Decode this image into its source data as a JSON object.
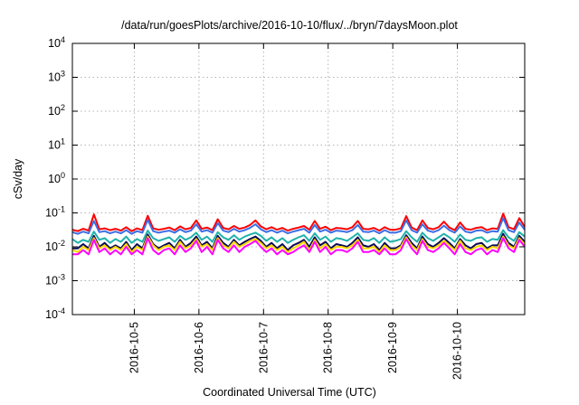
{
  "chart_data": {
    "type": "line",
    "title": "/data/run/goesPlots/archive/2016-10-10/flux/../bryn/7daysMoon.plot",
    "xlabel": "Coordinated Universal Time (UTC)",
    "ylabel": "cSv/day",
    "yscale": "log",
    "ylim": [
      0.0001,
      10000
    ],
    "yticks": [
      {
        "value": 0.0001,
        "base": "10",
        "exp": "-4"
      },
      {
        "value": 0.001,
        "base": "10",
        "exp": "-3"
      },
      {
        "value": 0.01,
        "base": "10",
        "exp": "-2"
      },
      {
        "value": 0.1,
        "base": "10",
        "exp": "-1"
      },
      {
        "value": 1,
        "base": "10",
        "exp": "0"
      },
      {
        "value": 10,
        "base": "10",
        "exp": "1"
      },
      {
        "value": 100,
        "base": "10",
        "exp": "2"
      },
      {
        "value": 1000,
        "base": "10",
        "exp": "3"
      },
      {
        "value": 10000,
        "base": "10",
        "exp": "4"
      }
    ],
    "xlim": [
      "2016-10-04T01:00",
      "2016-10-11T01:00"
    ],
    "xticks": [
      {
        "value": "2016-10-05T00:00",
        "label": "2016-10-5"
      },
      {
        "value": "2016-10-06T00:00",
        "label": "2016-10-6"
      },
      {
        "value": "2016-10-07T00:00",
        "label": "2016-10-7"
      },
      {
        "value": "2016-10-08T00:00",
        "label": "2016-10-8"
      },
      {
        "value": "2016-10-09T00:00",
        "label": "2016-10-9"
      },
      {
        "value": "2016-10-10T00:00",
        "label": "2016-10-10"
      }
    ],
    "grid": true,
    "x": [
      "2016-10-04T01:00",
      "2016-10-04T03:00",
      "2016-10-04T05:00",
      "2016-10-04T07:00",
      "2016-10-04T09:00",
      "2016-10-04T11:00",
      "2016-10-04T13:00",
      "2016-10-04T15:00",
      "2016-10-04T17:00",
      "2016-10-04T19:00",
      "2016-10-04T21:00",
      "2016-10-04T23:00",
      "2016-10-05T01:00",
      "2016-10-05T03:00",
      "2016-10-05T05:00",
      "2016-10-05T07:00",
      "2016-10-05T09:00",
      "2016-10-05T11:00",
      "2016-10-05T13:00",
      "2016-10-05T15:00",
      "2016-10-05T17:00",
      "2016-10-05T19:00",
      "2016-10-05T21:00",
      "2016-10-05T23:00",
      "2016-10-06T01:00",
      "2016-10-06T03:00",
      "2016-10-06T05:00",
      "2016-10-06T07:00",
      "2016-10-06T09:00",
      "2016-10-06T11:00",
      "2016-10-06T13:00",
      "2016-10-06T15:00",
      "2016-10-06T17:00",
      "2016-10-06T19:00",
      "2016-10-06T21:00",
      "2016-10-06T23:00",
      "2016-10-07T01:00",
      "2016-10-07T03:00",
      "2016-10-07T05:00",
      "2016-10-07T07:00",
      "2016-10-07T09:00",
      "2016-10-07T11:00",
      "2016-10-07T13:00",
      "2016-10-07T15:00",
      "2016-10-07T17:00",
      "2016-10-07T19:00",
      "2016-10-07T21:00",
      "2016-10-07T23:00",
      "2016-10-08T01:00",
      "2016-10-08T03:00",
      "2016-10-08T05:00",
      "2016-10-08T07:00",
      "2016-10-08T09:00",
      "2016-10-08T11:00",
      "2016-10-08T13:00",
      "2016-10-08T15:00",
      "2016-10-08T17:00",
      "2016-10-08T19:00",
      "2016-10-08T21:00",
      "2016-10-08T23:00",
      "2016-10-09T01:00",
      "2016-10-09T03:00",
      "2016-10-09T05:00",
      "2016-10-09T07:00",
      "2016-10-09T09:00",
      "2016-10-09T11:00",
      "2016-10-09T13:00",
      "2016-10-09T15:00",
      "2016-10-09T17:00",
      "2016-10-09T19:00",
      "2016-10-09T21:00",
      "2016-10-09T23:00",
      "2016-10-10T01:00",
      "2016-10-10T03:00",
      "2016-10-10T05:00",
      "2016-10-10T07:00",
      "2016-10-10T09:00",
      "2016-10-10T11:00",
      "2016-10-10T13:00",
      "2016-10-10T15:00",
      "2016-10-10T17:00",
      "2016-10-10T19:00",
      "2016-10-10T21:00",
      "2016-10-10T23:00",
      "2016-10-11T01:00"
    ],
    "series": [
      {
        "color": "#ff0000",
        "values": [
          0.032,
          0.029,
          0.034,
          0.03,
          0.09,
          0.033,
          0.035,
          0.031,
          0.034,
          0.03,
          0.038,
          0.029,
          0.035,
          0.031,
          0.082,
          0.035,
          0.032,
          0.034,
          0.037,
          0.031,
          0.04,
          0.033,
          0.036,
          0.06,
          0.034,
          0.037,
          0.031,
          0.065,
          0.036,
          0.033,
          0.041,
          0.034,
          0.037,
          0.044,
          0.06,
          0.04,
          0.033,
          0.038,
          0.032,
          0.036,
          0.03,
          0.034,
          0.037,
          0.041,
          0.032,
          0.058,
          0.034,
          0.039,
          0.031,
          0.036,
          0.035,
          0.033,
          0.038,
          0.058,
          0.034,
          0.033,
          0.036,
          0.03,
          0.038,
          0.032,
          0.032,
          0.035,
          0.08,
          0.037,
          0.031,
          0.06,
          0.036,
          0.033,
          0.038,
          0.055,
          0.037,
          0.031,
          0.052,
          0.034,
          0.032,
          0.036,
          0.038,
          0.031,
          0.035,
          0.034,
          0.095,
          0.038,
          0.033,
          0.07,
          0.039
        ]
      },
      {
        "color": "#3c6ee6",
        "values": [
          0.027,
          0.024,
          0.028,
          0.025,
          0.058,
          0.027,
          0.029,
          0.025,
          0.028,
          0.025,
          0.031,
          0.024,
          0.029,
          0.026,
          0.062,
          0.029,
          0.026,
          0.028,
          0.03,
          0.026,
          0.033,
          0.027,
          0.03,
          0.046,
          0.028,
          0.031,
          0.026,
          0.05,
          0.03,
          0.027,
          0.034,
          0.028,
          0.031,
          0.036,
          0.046,
          0.033,
          0.027,
          0.031,
          0.026,
          0.03,
          0.025,
          0.028,
          0.031,
          0.034,
          0.026,
          0.044,
          0.028,
          0.032,
          0.026,
          0.03,
          0.029,
          0.027,
          0.031,
          0.044,
          0.028,
          0.027,
          0.03,
          0.025,
          0.031,
          0.026,
          0.026,
          0.029,
          0.06,
          0.031,
          0.026,
          0.046,
          0.03,
          0.027,
          0.031,
          0.042,
          0.031,
          0.026,
          0.04,
          0.028,
          0.026,
          0.03,
          0.031,
          0.026,
          0.029,
          0.028,
          0.07,
          0.031,
          0.027,
          0.052,
          0.032
        ]
      },
      {
        "color": "#20b2aa",
        "values": [
          0.017,
          0.013,
          0.016,
          0.014,
          0.028,
          0.016,
          0.018,
          0.013,
          0.017,
          0.014,
          0.02,
          0.013,
          0.017,
          0.014,
          0.03,
          0.018,
          0.015,
          0.017,
          0.019,
          0.014,
          0.021,
          0.016,
          0.019,
          0.026,
          0.016,
          0.02,
          0.014,
          0.027,
          0.019,
          0.016,
          0.022,
          0.016,
          0.02,
          0.023,
          0.026,
          0.021,
          0.015,
          0.019,
          0.014,
          0.018,
          0.013,
          0.016,
          0.019,
          0.022,
          0.015,
          0.025,
          0.016,
          0.02,
          0.014,
          0.018,
          0.017,
          0.015,
          0.019,
          0.025,
          0.016,
          0.015,
          0.018,
          0.013,
          0.019,
          0.014,
          0.015,
          0.017,
          0.029,
          0.019,
          0.014,
          0.026,
          0.018,
          0.015,
          0.019,
          0.024,
          0.019,
          0.014,
          0.023,
          0.016,
          0.015,
          0.018,
          0.019,
          0.014,
          0.017,
          0.016,
          0.031,
          0.019,
          0.015,
          0.027,
          0.02
        ]
      },
      {
        "color": "#0b0b55",
        "values": [
          0.009,
          0.009,
          0.012,
          0.009,
          0.021,
          0.01,
          0.013,
          0.009,
          0.011,
          0.009,
          0.014,
          0.008,
          0.012,
          0.009,
          0.023,
          0.012,
          0.009,
          0.011,
          0.013,
          0.009,
          0.016,
          0.01,
          0.013,
          0.02,
          0.011,
          0.014,
          0.009,
          0.021,
          0.013,
          0.01,
          0.016,
          0.011,
          0.014,
          0.017,
          0.02,
          0.015,
          0.01,
          0.013,
          0.009,
          0.012,
          0.008,
          0.011,
          0.013,
          0.016,
          0.01,
          0.019,
          0.011,
          0.014,
          0.009,
          0.012,
          0.011,
          0.01,
          0.013,
          0.019,
          0.011,
          0.01,
          0.012,
          0.008,
          0.013,
          0.009,
          0.009,
          0.011,
          0.022,
          0.013,
          0.009,
          0.02,
          0.012,
          0.01,
          0.013,
          0.018,
          0.013,
          0.009,
          0.017,
          0.011,
          0.009,
          0.012,
          0.013,
          0.009,
          0.011,
          0.011,
          0.024,
          0.013,
          0.01,
          0.021,
          0.014
        ]
      },
      {
        "color": "#ffd700",
        "values": [
          0.008,
          0.007,
          0.01,
          0.008,
          0.018,
          0.009,
          0.011,
          0.008,
          0.01,
          0.008,
          0.012,
          0.007,
          0.01,
          0.008,
          0.02,
          0.011,
          0.008,
          0.01,
          0.011,
          0.008,
          0.014,
          0.009,
          0.011,
          0.017,
          0.01,
          0.012,
          0.008,
          0.018,
          0.011,
          0.009,
          0.014,
          0.01,
          0.012,
          0.015,
          0.017,
          0.013,
          0.009,
          0.011,
          0.008,
          0.01,
          0.007,
          0.009,
          0.011,
          0.014,
          0.008,
          0.016,
          0.009,
          0.012,
          0.008,
          0.01,
          0.01,
          0.009,
          0.011,
          0.016,
          0.009,
          0.009,
          0.01,
          0.007,
          0.011,
          0.008,
          0.008,
          0.01,
          0.019,
          0.011,
          0.008,
          0.017,
          0.01,
          0.009,
          0.011,
          0.015,
          0.011,
          0.008,
          0.015,
          0.009,
          0.008,
          0.01,
          0.011,
          0.008,
          0.01,
          0.009,
          0.02,
          0.011,
          0.009,
          0.018,
          0.012
        ]
      },
      {
        "color": "#ff00ff",
        "values": [
          0.006,
          0.006,
          0.008,
          0.006,
          0.016,
          0.007,
          0.009,
          0.006,
          0.008,
          0.006,
          0.01,
          0.006,
          0.008,
          0.006,
          0.018,
          0.008,
          0.006,
          0.008,
          0.009,
          0.006,
          0.011,
          0.007,
          0.009,
          0.015,
          0.007,
          0.01,
          0.006,
          0.016,
          0.009,
          0.007,
          0.011,
          0.007,
          0.01,
          0.012,
          0.015,
          0.01,
          0.007,
          0.009,
          0.006,
          0.008,
          0.006,
          0.007,
          0.009,
          0.011,
          0.007,
          0.014,
          0.007,
          0.01,
          0.006,
          0.008,
          0.008,
          0.007,
          0.009,
          0.014,
          0.007,
          0.007,
          0.008,
          0.006,
          0.009,
          0.006,
          0.006,
          0.008,
          0.017,
          0.009,
          0.006,
          0.015,
          0.008,
          0.007,
          0.009,
          0.013,
          0.009,
          0.006,
          0.012,
          0.007,
          0.006,
          0.008,
          0.009,
          0.006,
          0.008,
          0.007,
          0.018,
          0.009,
          0.007,
          0.016,
          0.01
        ]
      }
    ]
  }
}
